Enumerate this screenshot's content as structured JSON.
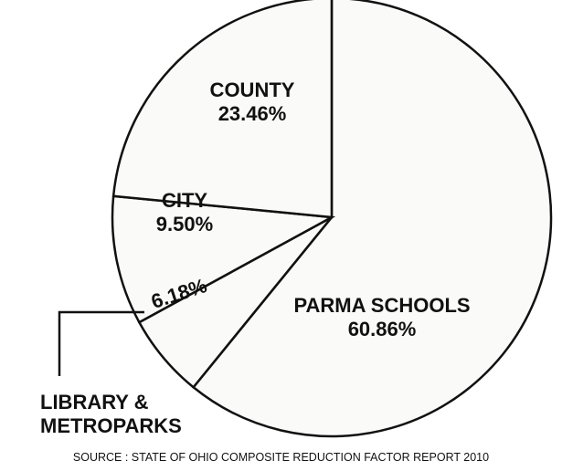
{
  "chart_data": {
    "type": "pie",
    "categories": [
      "PARMA SCHOOLS",
      "LIBRARY & METROPARKS",
      "CITY",
      "COUNTY"
    ],
    "values": [
      60.86,
      6.18,
      9.5,
      23.46
    ],
    "value_labels": [
      "60.86%",
      "6.18%",
      "9.50%",
      "23.46%"
    ],
    "colors": [
      "#ffffff",
      "#ffffff",
      "#ffffff",
      "#ffffff"
    ],
    "source": "SOURCE : STATE OF OHIO COMPOSITE REDUCTION FACTOR REPORT 2010"
  }
}
